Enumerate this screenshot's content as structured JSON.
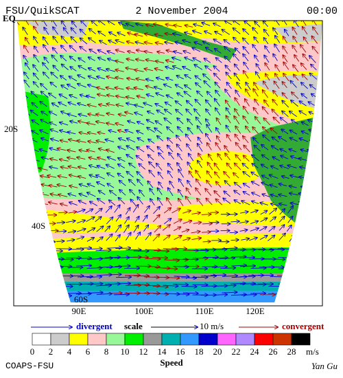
{
  "header": {
    "source": "FSU/QuikSCAT",
    "date": "2 November 2004",
    "time": "00:00"
  },
  "map": {
    "lat_labels": [
      "EQ",
      "20S",
      "40S",
      "60S"
    ],
    "lon_labels": [
      "90E",
      "100E",
      "110E",
      "120E"
    ]
  },
  "legend": {
    "divergent": "divergent",
    "scale": "scale",
    "scale_value": "10 m/s",
    "convergent": "convergent"
  },
  "colorbar": {
    "ticks": [
      "0",
      "2",
      "4",
      "6",
      "8",
      "10",
      "12",
      "14",
      "16",
      "18",
      "20",
      "22",
      "24",
      "26",
      "28"
    ],
    "colors": [
      "#ffffff",
      "#cccccc",
      "#ffff00",
      "#ffc8c8",
      "#98f898",
      "#00ee00",
      "#999999",
      "#00b0b0",
      "#3399ff",
      "#0000cc",
      "#ff66ff",
      "#b088ff",
      "#ff0000",
      "#cc3300",
      "#000000"
    ],
    "unit": "m/s",
    "label": "Speed"
  },
  "footer": {
    "left": "COAPS-FSU",
    "right": "Yan Gu"
  }
}
